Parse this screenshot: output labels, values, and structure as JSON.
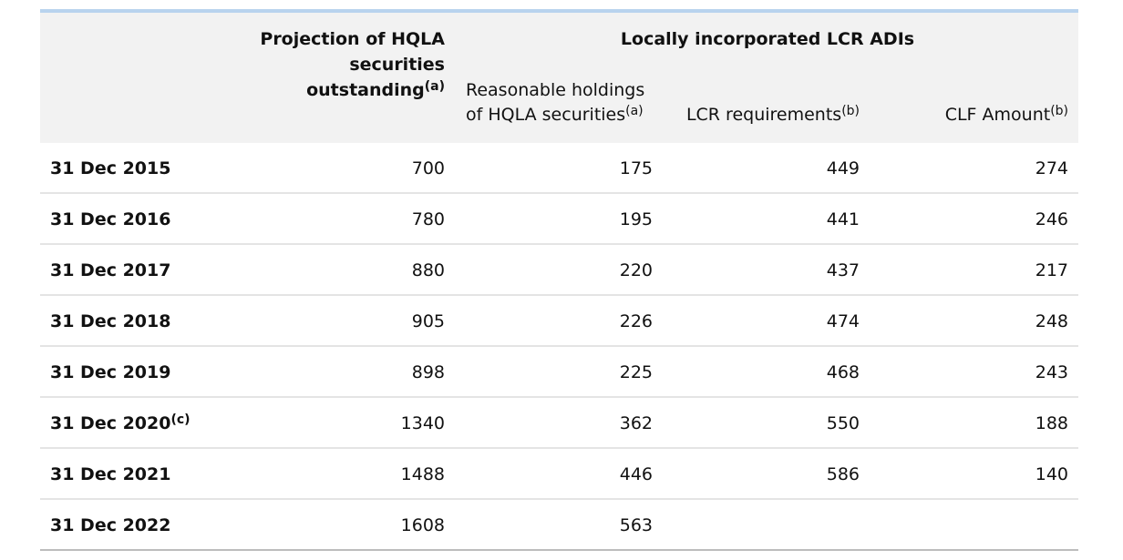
{
  "table": {
    "header": {
      "projection": {
        "text": "Projection of HQLA securities outstanding",
        "note": "(a)"
      },
      "group": "Locally incorporated LCR ADIs",
      "columns": [
        {
          "text": "Reasonable holdings of HQLA securities",
          "note": "(a)"
        },
        {
          "text": "LCR requirements",
          "note": "(b)"
        },
        {
          "text": "CLF Amount",
          "note": "(b)"
        }
      ]
    },
    "rows": [
      {
        "label": "31 Dec 2015",
        "values": [
          700,
          175,
          449,
          274
        ]
      },
      {
        "label": "31 Dec 2016",
        "values": [
          780,
          195,
          441,
          246
        ]
      },
      {
        "label": "31 Dec 2017",
        "values": [
          880,
          220,
          437,
          217
        ]
      },
      {
        "label": "31 Dec 2018",
        "values": [
          905,
          226,
          474,
          248
        ]
      },
      {
        "label": "31 Dec 2019",
        "values": [
          898,
          225,
          468,
          243
        ]
      },
      {
        "label": "31 Dec 2020",
        "note": "(c)",
        "values": [
          1340,
          362,
          550,
          188
        ]
      },
      {
        "label": "31 Dec 2021",
        "values": [
          1488,
          446,
          586,
          140
        ]
      },
      {
        "label": "31 Dec 2022",
        "values": [
          1608,
          563
        ]
      }
    ]
  }
}
